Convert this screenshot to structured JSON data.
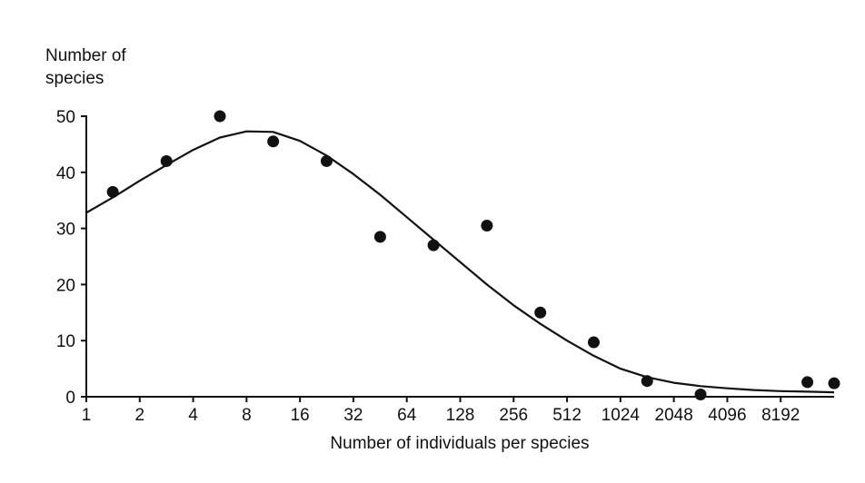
{
  "chart_data": {
    "type": "scatter",
    "title": "",
    "ylabel_lines": [
      "Number of",
      "species"
    ],
    "xlabel": "Number of individuals per species",
    "x_scale": "log2",
    "xlim": [
      1,
      16384
    ],
    "ylim": [
      0,
      50
    ],
    "grid": false,
    "x_ticks": [
      1,
      2,
      4,
      8,
      16,
      32,
      64,
      128,
      256,
      512,
      1024,
      2048,
      4096,
      8192
    ],
    "x_tick_labels": [
      "1",
      "2",
      "4",
      "8",
      "16",
      "32",
      "64",
      "128",
      "256",
      "512",
      "1024",
      "2048",
      "4096",
      "8192"
    ],
    "y_ticks": [
      0,
      10,
      20,
      30,
      40,
      50
    ],
    "y_tick_labels": [
      "0",
      "10",
      "20",
      "30",
      "40",
      "50"
    ],
    "series": [
      {
        "kind": "points",
        "x": [
          1.41,
          2.83,
          5.66,
          11.3,
          22.6,
          45.3,
          90.5,
          181,
          362,
          724,
          1448,
          2896,
          11585,
          16384
        ],
        "y": [
          36.5,
          42,
          50,
          45.5,
          42,
          28.5,
          27,
          30.5,
          15,
          9.7,
          2.8,
          0.4,
          2.6,
          2.4
        ]
      },
      {
        "kind": "curve",
        "x": [
          1,
          1.41,
          2,
          2.83,
          4,
          5.66,
          8,
          11.3,
          16,
          22.6,
          32,
          45.3,
          64,
          90.5,
          128,
          181,
          256,
          362,
          512,
          724,
          1024,
          1448,
          2048,
          2896,
          4096,
          5793,
          8192,
          11585,
          16384
        ],
        "y": [
          32.8,
          35.5,
          38.5,
          41.3,
          44.0,
          46.2,
          47.3,
          47.2,
          45.6,
          43.0,
          39.7,
          36.0,
          32.0,
          28.0,
          24.0,
          20.0,
          16.3,
          13.0,
          10.0,
          7.3,
          5.0,
          3.5,
          2.5,
          1.9,
          1.5,
          1.2,
          1.0,
          0.9,
          0.8
        ]
      }
    ],
    "colors": {
      "ink": "#111111",
      "background": "#ffffff"
    }
  }
}
